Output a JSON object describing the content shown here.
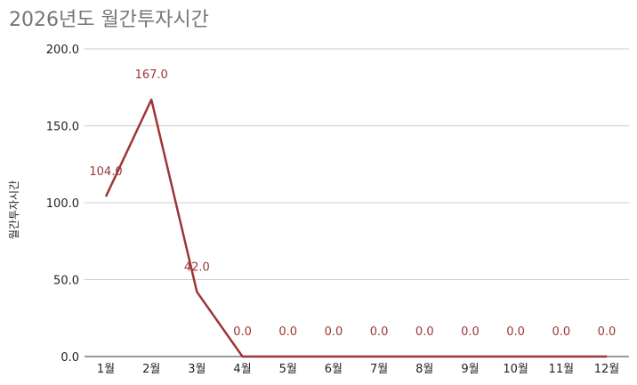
{
  "chart_data": {
    "type": "line",
    "title": "2026년도 월간투자시간",
    "xlabel": "",
    "ylabel": "월간투자시간",
    "categories": [
      "1월",
      "2월",
      "3월",
      "4월",
      "5월",
      "6월",
      "7월",
      "8월",
      "9월",
      "10월",
      "11월",
      "12월"
    ],
    "series": [
      {
        "values": [
          104.0,
          167.0,
          42.0,
          0.0,
          0.0,
          0.0,
          0.0,
          0.0,
          0.0,
          0.0,
          0.0,
          0.0
        ],
        "data_labels": [
          "104.0",
          "167.0",
          "42.0",
          "0.0",
          "0.0",
          "0.0",
          "0.0",
          "0.0",
          "0.0",
          "0.0",
          "0.0",
          "0.0"
        ],
        "color": "#9c3636"
      }
    ],
    "ylim": [
      0,
      200
    ],
    "yticks": [
      "0.0",
      "50.0",
      "100.0",
      "150.0",
      "200.0"
    ],
    "grid": true,
    "legend": "none"
  }
}
